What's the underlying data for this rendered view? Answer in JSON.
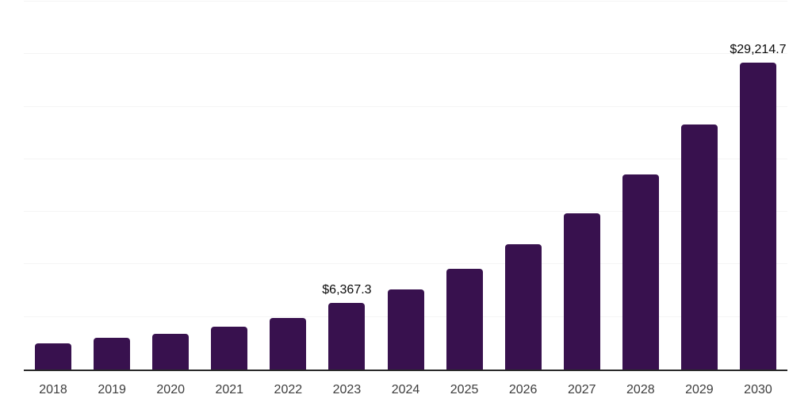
{
  "chart_data": {
    "type": "bar",
    "title": "",
    "xlabel": "",
    "ylabel": "",
    "categories": [
      "2018",
      "2019",
      "2020",
      "2021",
      "2022",
      "2023",
      "2024",
      "2025",
      "2026",
      "2027",
      "2028",
      "2029",
      "2030"
    ],
    "values": [
      2480,
      3010,
      3390,
      4060,
      4900,
      6367.3,
      7610,
      9550,
      11950,
      14830,
      18590,
      23330,
      29214.7
    ],
    "data_labels": {
      "2023": "$6,367.3",
      "2030": "$29,214.7"
    },
    "ylim": [
      0,
      35000
    ],
    "gridline_step": 5000,
    "grid": "horizontal",
    "legend": "none",
    "colors": {
      "bar": "#38114e",
      "gridline": "#f4f4f4",
      "axis_line": "#2a2a2a",
      "tick_label": "#3d3d3d",
      "data_label": "#0a0a0a",
      "background": "#ffffff"
    }
  }
}
